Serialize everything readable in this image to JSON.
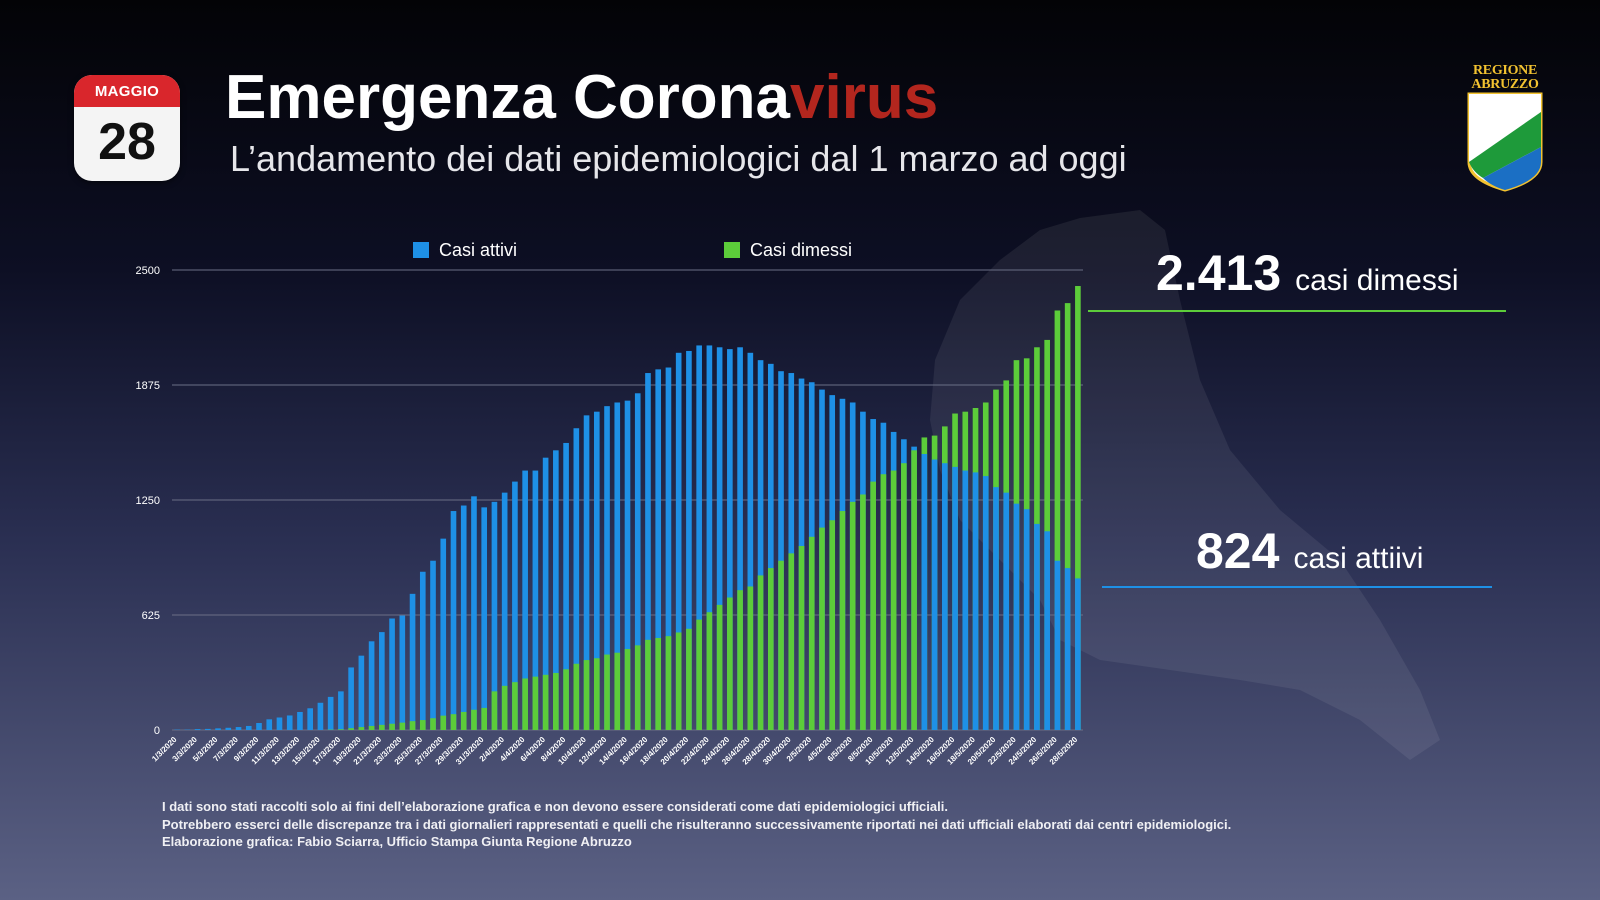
{
  "header": {
    "calendar_month": "MAGGIO",
    "calendar_day": "28",
    "title_main": "Emergenza Corona",
    "title_accent": "virus",
    "subtitle": "L’andamento dei dati epidemiologici dal 1 marzo ad oggi"
  },
  "logo": {
    "line1": "REGIONE",
    "line2": "ABRUZZO"
  },
  "legend": {
    "active": "Casi attivi",
    "discharged": "Casi dimessi"
  },
  "callouts": {
    "discharged_value": "2.413",
    "discharged_label": "casi dimessi",
    "active_value": "824",
    "active_label": "casi attiivi"
  },
  "footnotes": {
    "line1": "I dati sono stati raccolti solo ai fini dell’elaborazione grafica e non devono essere considerati come dati epidemiologici ufficiali.",
    "line2": "Potrebbero esserci delle discrepanze tra i dati giornalieri rappresentati e quelli che risulteranno successivamente riportati nei dati ufficiali elaborati dai centri epidemiologici.",
    "line3": "Elaborazione grafica: Fabio Sciarra, Ufficio Stampa Giunta Regione Abruzzo"
  },
  "colors": {
    "active": "#1e90e6",
    "discharged": "#5ccc3a",
    "title_accent": "#b3261e",
    "calendar_red": "#d9262c",
    "gridline": "#6b6f86",
    "logo_gold": "#f2c230",
    "logo_green": "#1e9a3a",
    "logo_blue": "#1b6fc4"
  },
  "chart_data": {
    "type": "bar",
    "title": "",
    "xlabel": "",
    "ylabel": "",
    "ylim": [
      0,
      2500
    ],
    "yticks": [
      0,
      625,
      1250,
      1875,
      2500
    ],
    "grid": true,
    "legend_position": "top",
    "categories": [
      "1/3/2020",
      "2/3/2020",
      "3/3/2020",
      "4/3/2020",
      "5/3/2020",
      "6/3/2020",
      "7/3/2020",
      "8/3/2020",
      "9/3/2020",
      "10/3/2020",
      "11/3/2020",
      "12/3/2020",
      "13/3/2020",
      "14/3/2020",
      "15/3/2020",
      "16/3/2020",
      "17/3/2020",
      "18/3/2020",
      "19/3/2020",
      "20/3/2020",
      "21/3/2020",
      "22/3/2020",
      "23/3/2020",
      "24/3/2020",
      "25/3/2020",
      "26/3/2020",
      "27/3/2020",
      "28/3/2020",
      "29/3/2020",
      "30/3/2020",
      "31/3/2020",
      "1/4/2020",
      "2/4/2020",
      "3/4/2020",
      "4/4/2020",
      "5/4/2020",
      "6/4/2020",
      "7/4/2020",
      "8/4/2020",
      "9/4/2020",
      "10/4/2020",
      "11/4/2020",
      "12/4/2020",
      "13/4/2020",
      "14/4/2020",
      "15/4/2020",
      "16/4/2020",
      "17/4/2020",
      "18/4/2020",
      "19/4/2020",
      "20/4/2020",
      "21/4/2020",
      "22/4/2020",
      "23/4/2020",
      "24/4/2020",
      "25/4/2020",
      "26/4/2020",
      "27/4/2020",
      "28/4/2020",
      "29/4/2020",
      "30/4/2020",
      "1/5/2020",
      "2/5/2020",
      "3/5/2020",
      "4/5/2020",
      "5/5/2020",
      "6/5/2020",
      "7/5/2020",
      "8/5/2020",
      "9/5/2020",
      "10/5/2020",
      "11/5/2020",
      "12/5/2020",
      "13/5/2020",
      "14/5/2020",
      "15/5/2020",
      "16/5/2020",
      "17/5/2020",
      "18/5/2020",
      "19/5/2020",
      "20/5/2020",
      "21/5/2020",
      "22/5/2020",
      "23/5/2020",
      "24/5/2020",
      "25/5/2020",
      "26/5/2020",
      "27/5/2020",
      "28/5/2020"
    ],
    "tick_labels": [
      "1/3/2020",
      "3/3/2020",
      "5/3/2020",
      "7/3/2020",
      "9/3/2020",
      "11/3/2020",
      "13/3/2020",
      "15/3/2020",
      "17/3/2020",
      "19/3/2020",
      "21/3/2020",
      "23/3/2020",
      "25/3/2020",
      "27/3/2020",
      "29/3/2020",
      "31/3/2020",
      "2/4/2020",
      "4/4/2020",
      "6/4/2020",
      "8/4/2020",
      "10/4/2020",
      "12/4/2020",
      "14/4/2020",
      "16/4/2020",
      "18/4/2020",
      "20/4/2020",
      "22/4/2020",
      "24/4/2020",
      "26/4/2020",
      "28/4/2020",
      "30/4/2020",
      "2/5/2020",
      "4/5/2020",
      "6/5/2020",
      "8/5/2020",
      "10/5/2020",
      "12/5/2020",
      "14/5/2020",
      "16/5/2020",
      "18/5/2020",
      "20/5/2020",
      "22/5/2020",
      "24/5/2020",
      "26/5/2020",
      "28/5/2020"
    ],
    "series": [
      {
        "name": "Casi attivi",
        "values": [
          2,
          2,
          5,
          6,
          9,
          12,
          16,
          22,
          38,
          58,
          68,
          79,
          98,
          118,
          148,
          180,
          210,
          340,
          404,
          482,
          532,
          606,
          622,
          740,
          860,
          920,
          1040,
          1190,
          1220,
          1270,
          1210,
          1240,
          1290,
          1350,
          1410,
          1410,
          1480,
          1520,
          1560,
          1640,
          1710,
          1730,
          1760,
          1780,
          1790,
          1830,
          1940,
          1960,
          1970,
          2050,
          2060,
          2090,
          2090,
          2080,
          2070,
          2080,
          2050,
          2010,
          1990,
          1950,
          1940,
          1910,
          1890,
          1850,
          1820,
          1800,
          1780,
          1730,
          1690,
          1670,
          1620,
          1580,
          1540,
          1500,
          1470,
          1450,
          1430,
          1410,
          1400,
          1380,
          1320,
          1290,
          1230,
          1200,
          1120,
          1080,
          920,
          880,
          824
        ]
      },
      {
        "name": "Casi dimessi",
        "values": [
          0,
          0,
          0,
          0,
          0,
          0,
          0,
          0,
          0,
          0,
          0,
          0,
          0,
          0,
          0,
          2,
          4,
          10,
          16,
          22,
          28,
          34,
          40,
          48,
          54,
          64,
          78,
          86,
          98,
          110,
          120,
          210,
          240,
          260,
          280,
          290,
          300,
          310,
          330,
          360,
          380,
          390,
          410,
          420,
          440,
          460,
          490,
          500,
          510,
          530,
          550,
          600,
          640,
          680,
          720,
          760,
          780,
          840,
          880,
          920,
          960,
          1000,
          1050,
          1100,
          1140,
          1190,
          1240,
          1280,
          1350,
          1390,
          1410,
          1450,
          1520,
          1590,
          1600,
          1650,
          1720,
          1730,
          1750,
          1780,
          1850,
          1900,
          2010,
          2020,
          2080,
          2120,
          2280,
          2320,
          2413
        ]
      }
    ]
  }
}
